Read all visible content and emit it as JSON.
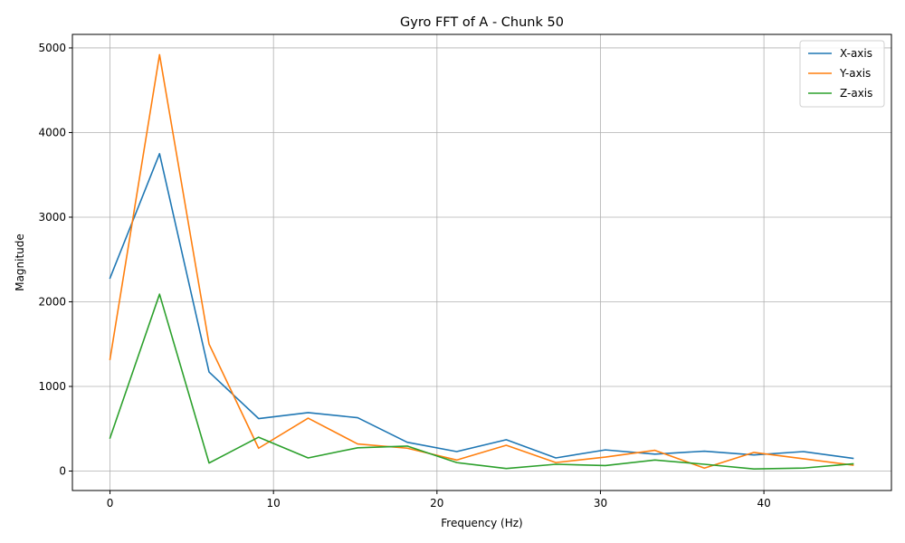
{
  "chart_data": {
    "type": "line",
    "title": "Gyro FFT of A - Chunk 50",
    "xlabel": "Frequency (Hz)",
    "ylabel": "Magnitude",
    "xlim": [
      -2.3,
      47.8
    ],
    "ylim": [
      -230,
      5160
    ],
    "xticks": [
      0,
      10,
      20,
      30,
      40
    ],
    "yticks": [
      0,
      1000,
      2000,
      3000,
      4000,
      5000
    ],
    "grid": true,
    "legend_position": "top-right",
    "x": [
      0,
      3.03,
      6.06,
      9.09,
      12.12,
      15.15,
      18.18,
      21.21,
      24.24,
      27.27,
      30.3,
      33.33,
      36.36,
      39.39,
      42.42,
      45.45
    ],
    "series": [
      {
        "name": "X-axis",
        "color": "#1f77b4",
        "values": [
          2280,
          3750,
          1170,
          620,
          690,
          630,
          340,
          230,
          370,
          155,
          250,
          200,
          235,
          190,
          230,
          150
        ]
      },
      {
        "name": "Y-axis",
        "color": "#ff7f0e",
        "values": [
          1320,
          4920,
          1500,
          270,
          625,
          320,
          270,
          130,
          305,
          100,
          165,
          245,
          35,
          220,
          145,
          70
        ]
      },
      {
        "name": "Z-axis",
        "color": "#2ca02c",
        "values": [
          390,
          2090,
          95,
          400,
          155,
          275,
          295,
          100,
          30,
          80,
          65,
          130,
          80,
          25,
          35,
          85
        ]
      }
    ]
  }
}
